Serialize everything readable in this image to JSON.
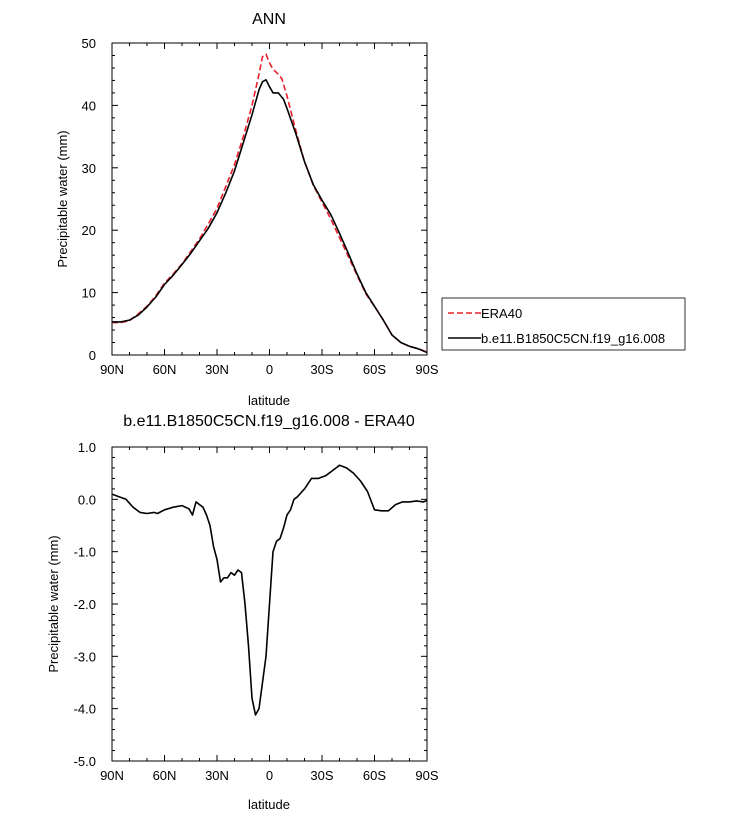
{
  "chart_data": [
    {
      "type": "line",
      "title": "ANN",
      "xlabel": "latitude",
      "ylabel": "Precipitable water (mm)",
      "xlim": [
        90,
        -90
      ],
      "ylim": [
        0,
        50
      ],
      "x_ticks": [
        90,
        60,
        30,
        0,
        -30,
        -60,
        -90
      ],
      "x_tick_labels": [
        "90N",
        "60N",
        "30N",
        "0",
        "30S",
        "60S",
        "90S"
      ],
      "y_ticks": [
        0,
        10,
        20,
        30,
        40,
        50
      ],
      "y_tick_labels": [
        "0",
        "10",
        "20",
        "30",
        "40",
        "50"
      ],
      "legend_position": "right",
      "series": [
        {
          "name": "ERA40",
          "color": "#e8202a",
          "dash": "dashed",
          "points": [
            [
              90,
              5.2
            ],
            [
              85,
              5.2
            ],
            [
              80,
              5.5
            ],
            [
              75,
              6.6
            ],
            [
              70,
              7.8
            ],
            [
              65,
              9.5
            ],
            [
              60,
              11.5
            ],
            [
              55,
              13.0
            ],
            [
              50,
              14.6
            ],
            [
              45,
              16.6
            ],
            [
              40,
              18.6
            ],
            [
              35,
              21.0
            ],
            [
              30,
              23.5
            ],
            [
              25,
              27.0
            ],
            [
              20,
              30.5
            ],
            [
              15,
              35.0
            ],
            [
              10,
              40.0
            ],
            [
              6,
              45.0
            ],
            [
              4,
              47.8
            ],
            [
              2,
              48.2
            ],
            [
              0,
              46.8
            ],
            [
              -2,
              45.8
            ],
            [
              -5,
              45.0
            ],
            [
              -7,
              44.3
            ],
            [
              -10,
              41.5
            ],
            [
              -15,
              36.0
            ],
            [
              -20,
              31.0
            ],
            [
              -25,
              27.2
            ],
            [
              -30,
              24.5
            ],
            [
              -35,
              21.8
            ],
            [
              -40,
              18.8
            ],
            [
              -45,
              15.8
            ],
            [
              -50,
              12.8
            ],
            [
              -55,
              9.8
            ],
            [
              -60,
              7.8
            ],
            [
              -65,
              5.6
            ],
            [
              -70,
              3.2
            ],
            [
              -75,
              2.0
            ],
            [
              -80,
              1.4
            ],
            [
              -85,
              1.0
            ],
            [
              -90,
              0.5
            ]
          ]
        },
        {
          "name": "b.e11.B1850C5CN.f19_g16.008",
          "color": "#000000",
          "dash": "solid",
          "points": [
            [
              90,
              5.3
            ],
            [
              85,
              5.3
            ],
            [
              80,
              5.6
            ],
            [
              75,
              6.4
            ],
            [
              70,
              7.7
            ],
            [
              65,
              9.3
            ],
            [
              60,
              11.3
            ],
            [
              55,
              12.8
            ],
            [
              50,
              14.5
            ],
            [
              45,
              16.3
            ],
            [
              40,
              18.3
            ],
            [
              35,
              20.3
            ],
            [
              30,
              22.8
            ],
            [
              25,
              26.0
            ],
            [
              20,
              29.5
            ],
            [
              15,
              34.0
            ],
            [
              10,
              38.5
            ],
            [
              6,
              42.5
            ],
            [
              4,
              43.8
            ],
            [
              2,
              44.1
            ],
            [
              0,
              43.0
            ],
            [
              -2,
              42.0
            ],
            [
              -5,
              42.0
            ],
            [
              -8,
              41.0
            ],
            [
              -10,
              39.5
            ],
            [
              -15,
              35.5
            ],
            [
              -20,
              31.0
            ],
            [
              -25,
              27.3
            ],
            [
              -30,
              24.8
            ],
            [
              -35,
              22.5
            ],
            [
              -40,
              19.5
            ],
            [
              -45,
              16.3
            ],
            [
              -50,
              13.0
            ],
            [
              -55,
              10.0
            ],
            [
              -60,
              7.8
            ],
            [
              -65,
              5.6
            ],
            [
              -70,
              3.2
            ],
            [
              -75,
              2.0
            ],
            [
              -80,
              1.4
            ],
            [
              -85,
              1.0
            ],
            [
              -90,
              0.4
            ]
          ]
        }
      ]
    },
    {
      "type": "line",
      "title": "b.e11.B1850C5CN.f19_g16.008 - ERA40",
      "xlabel": "latitude",
      "ylabel": "Precipitable water (mm)",
      "xlim": [
        90,
        -90
      ],
      "ylim": [
        -5,
        1
      ],
      "x_ticks": [
        90,
        60,
        30,
        0,
        -30,
        -60,
        -90
      ],
      "x_tick_labels": [
        "90N",
        "60N",
        "30N",
        "0",
        "30S",
        "60S",
        "90S"
      ],
      "y_ticks": [
        1,
        0,
        -1,
        -2,
        -3,
        -4,
        -5
      ],
      "y_tick_labels": [
        "1.0",
        "0.0",
        "-1.0",
        "-2.0",
        "-3.0",
        "-4.0",
        "-5.0"
      ],
      "series": [
        {
          "color": "#000000",
          "dash": "solid",
          "points": [
            [
              90,
              0.1
            ],
            [
              86,
              0.05
            ],
            [
              82,
              0.0
            ],
            [
              78,
              -0.15
            ],
            [
              74,
              -0.25
            ],
            [
              70,
              -0.27
            ],
            [
              66,
              -0.25
            ],
            [
              64,
              -0.27
            ],
            [
              60,
              -0.2
            ],
            [
              55,
              -0.15
            ],
            [
              50,
              -0.12
            ],
            [
              46,
              -0.18
            ],
            [
              44,
              -0.3
            ],
            [
              42,
              -0.05
            ],
            [
              40,
              -0.1
            ],
            [
              38,
              -0.15
            ],
            [
              36,
              -0.3
            ],
            [
              34,
              -0.5
            ],
            [
              32,
              -0.9
            ],
            [
              30,
              -1.15
            ],
            [
              28,
              -1.58
            ],
            [
              26,
              -1.5
            ],
            [
              24,
              -1.5
            ],
            [
              22,
              -1.4
            ],
            [
              20,
              -1.45
            ],
            [
              18,
              -1.35
            ],
            [
              16,
              -1.4
            ],
            [
              14,
              -2.0
            ],
            [
              12,
              -2.8
            ],
            [
              10,
              -3.8
            ],
            [
              8,
              -4.12
            ],
            [
              6,
              -4.0
            ],
            [
              4,
              -3.5
            ],
            [
              2,
              -3.0
            ],
            [
              0,
              -2.0
            ],
            [
              -2,
              -1.0
            ],
            [
              -4,
              -0.8
            ],
            [
              -6,
              -0.75
            ],
            [
              -8,
              -0.55
            ],
            [
              -10,
              -0.3
            ],
            [
              -12,
              -0.2
            ],
            [
              -14,
              0.0
            ],
            [
              -16,
              0.05
            ],
            [
              -20,
              0.2
            ],
            [
              -24,
              0.4
            ],
            [
              -28,
              0.4
            ],
            [
              -32,
              0.45
            ],
            [
              -36,
              0.55
            ],
            [
              -40,
              0.65
            ],
            [
              -44,
              0.6
            ],
            [
              -48,
              0.5
            ],
            [
              -52,
              0.35
            ],
            [
              -56,
              0.15
            ],
            [
              -60,
              -0.2
            ],
            [
              -64,
              -0.22
            ],
            [
              -68,
              -0.22
            ],
            [
              -72,
              -0.1
            ],
            [
              -76,
              -0.05
            ],
            [
              -80,
              -0.05
            ],
            [
              -84,
              -0.03
            ],
            [
              -88,
              -0.05
            ],
            [
              -90,
              -0.02
            ]
          ]
        }
      ]
    }
  ]
}
